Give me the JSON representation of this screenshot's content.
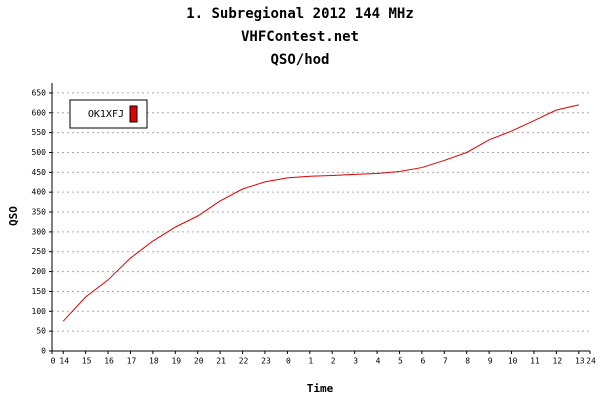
{
  "chart_data": {
    "type": "line",
    "title": "1. Subregional 2012 144 MHz",
    "subtitle": "VHFContest.net",
    "subtitle2": "QSO/hod",
    "x_label": "Time",
    "y_label": "QSO",
    "x": [
      0.5,
      1.5,
      2.5,
      3.5,
      4.5,
      5.5,
      6.5,
      7.5,
      8.5,
      9.5,
      10.5,
      11.5,
      12.5,
      13.5,
      14.5,
      15.5,
      16.5,
      17.5,
      18.5,
      19.5,
      20.5,
      21.5,
      22.5,
      23.5
    ],
    "series": [
      {
        "name": "OK1XFJ",
        "color": "#e00000",
        "values": [
          75,
          136,
          179,
          234,
          277,
          312,
          340,
          378,
          408,
          426,
          436,
          440,
          442,
          445,
          447,
          452,
          462,
          480,
          500,
          532,
          554,
          580,
          607,
          620
        ]
      }
    ],
    "xlim": [
      0,
      24
    ],
    "xticks": [
      0,
      {
        "value": 0.5,
        "label": "14"
      },
      {
        "value": 1.5,
        "label": "15"
      },
      {
        "value": 2.5,
        "label": "16"
      },
      {
        "value": 3.5,
        "label": "17"
      },
      {
        "value": 4.5,
        "label": "18"
      },
      {
        "value": 5.5,
        "label": "19"
      },
      {
        "value": 6.5,
        "label": "20"
      },
      {
        "value": 7.5,
        "label": "21"
      },
      {
        "value": 8.5,
        "label": "22"
      },
      {
        "value": 9.5,
        "label": "23"
      },
      {
        "value": 10.5,
        "label": "0"
      },
      {
        "value": 11.5,
        "label": "1"
      },
      {
        "value": 12.5,
        "label": "2"
      },
      {
        "value": 13.5,
        "label": "3"
      },
      {
        "value": 14.5,
        "label": "4"
      },
      {
        "value": 15.5,
        "label": "5"
      },
      {
        "value": 16.5,
        "label": "6"
      },
      {
        "value": 17.5,
        "label": "7"
      },
      {
        "value": 18.5,
        "label": "8"
      },
      {
        "value": 19.5,
        "label": "9"
      },
      {
        "value": 20.5,
        "label": "10"
      },
      {
        "value": 21.5,
        "label": "11"
      },
      {
        "value": 22.5,
        "label": "12"
      },
      {
        "value": 23.5,
        "label": "13"
      },
      24
    ],
    "ylim": [
      0,
      675
    ],
    "yticks": [
      0,
      50,
      100,
      150,
      200,
      250,
      300,
      350,
      400,
      450,
      500,
      550,
      600,
      650
    ],
    "grid": true,
    "legend": "top-left"
  }
}
